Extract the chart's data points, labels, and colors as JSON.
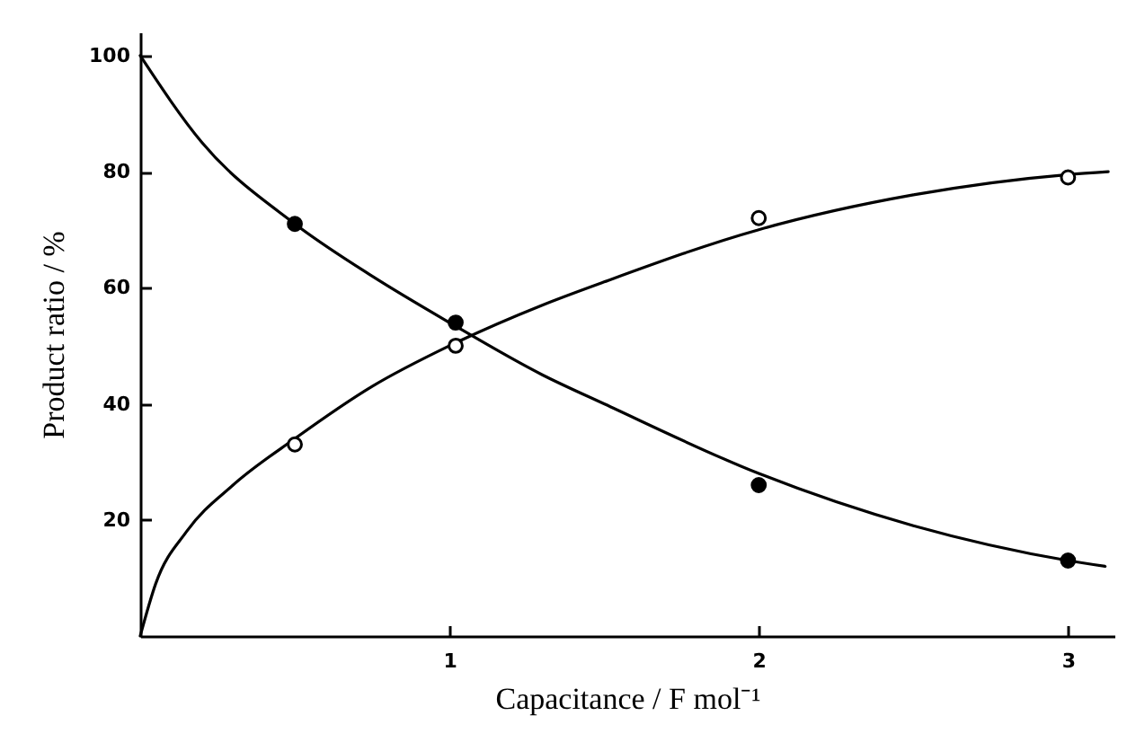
{
  "chart_data": {
    "type": "scatter",
    "xlabel": "Capacitance / F mol⁻¹",
    "ylabel": "Product ratio / %",
    "xlim": [
      0,
      3.15
    ],
    "ylim": [
      0,
      104
    ],
    "xticks": [
      1,
      2,
      3
    ],
    "yticks": [
      20,
      40,
      60,
      80,
      100
    ],
    "grid": false,
    "marker": "circle",
    "series": [
      {
        "type": "line",
        "color": "#000000",
        "marker": "none",
        "x": [
          0,
          0.2,
          0.5,
          0.75,
          1,
          1.3,
          1.5,
          2,
          2.5,
          3,
          3.12
        ],
        "values": [
          100,
          85,
          71,
          62,
          54,
          45,
          40,
          28,
          19,
          13,
          12
        ]
      },
      {
        "type": "line",
        "color": "#000000",
        "marker": "none",
        "x": [
          0,
          0.05,
          0.15,
          0.3,
          0.5,
          0.75,
          1,
          1.3,
          1.5,
          2,
          2.5,
          3,
          3.13
        ],
        "values": [
          0,
          9,
          18,
          26,
          34,
          43,
          50,
          57,
          61,
          70,
          76,
          79.5,
          80
        ]
      },
      {
        "color": "#000000",
        "x": [
          0.5,
          1.02,
          2,
          3
        ],
        "values": [
          71,
          54,
          26,
          13
        ]
      },
      {
        "color": "#ffffff",
        "x": [
          0.5,
          1.02,
          2,
          3
        ],
        "values": [
          33,
          50,
          72,
          79
        ]
      }
    ]
  }
}
